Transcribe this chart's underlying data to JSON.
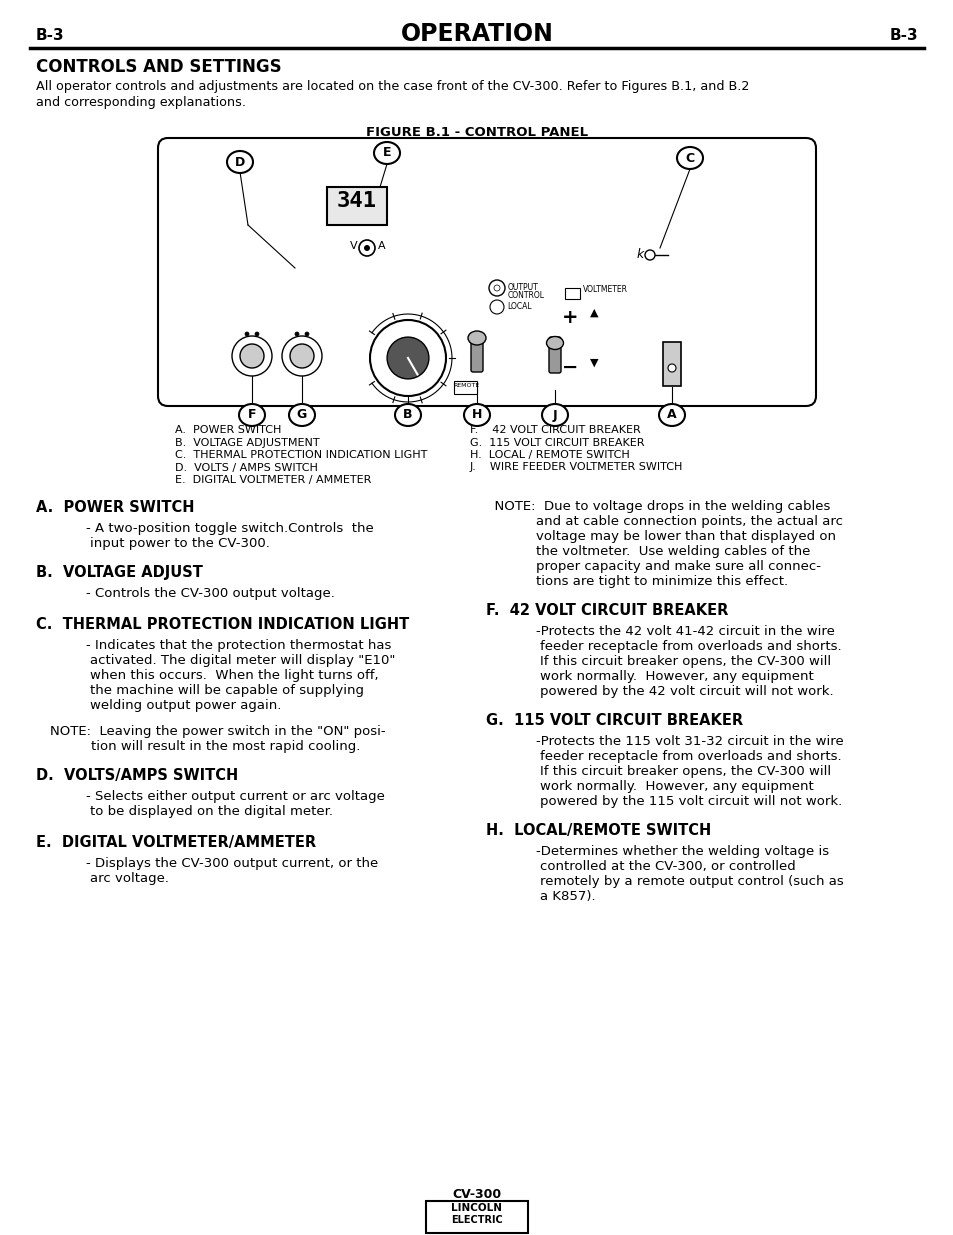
{
  "page_label_left": "B-3",
  "page_label_right": "B-3",
  "page_title": "OPERATION",
  "section_title": "CONTROLS AND SETTINGS",
  "intro_line1": "All operator controls and adjustments are located on the case front of the CV-300. Refer to Figures B.1, and B.2",
  "intro_line2": "and corresponding explanations.",
  "figure_title": "FIGURE B.1 - CONTROL PANEL",
  "legend_left": [
    "A.  POWER SWITCH",
    "B.  VOLTAGE ADJUSTMENT",
    "C.  THERMAL PROTECTION INDICATION LIGHT",
    "D.  VOLTS / AMPS SWITCH",
    "E.  DIGITAL VOLTMETER / AMMETER"
  ],
  "legend_right": [
    "F.    42 VOLT CIRCUIT BREAKER",
    "G.  115 VOLT CIRCUIT BREAKER",
    "H.  LOCAL / REMOTE SWITCH",
    "J.    WIRE FEEDER VOLTMETER SWITCH"
  ],
  "bg_color": "#ffffff",
  "panel_bg": "#f0f0f0",
  "text_color": "#000000"
}
